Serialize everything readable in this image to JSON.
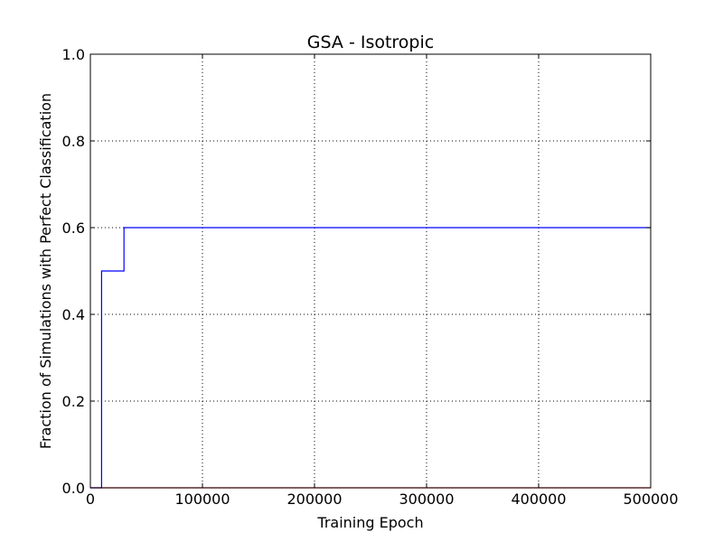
{
  "chart_data": {
    "type": "line",
    "title": "GSA - Isotropic",
    "xlabel": "Training Epoch",
    "ylabel": "Fraction of Simulations with Perfect Classification",
    "xlim": [
      0,
      500000
    ],
    "ylim": [
      0,
      1
    ],
    "x_ticks": [
      0,
      100000,
      200000,
      300000,
      400000,
      500000
    ],
    "y_ticks": [
      0,
      0.2,
      0.4,
      0.6,
      0.8,
      1
    ],
    "x_tick_labels": [
      "0",
      "100000",
      "200000",
      "300000",
      "400000",
      "500000"
    ],
    "y_tick_labels": [
      "0.0",
      "0.2",
      "0.4",
      "0.6",
      "0.8",
      "1.0"
    ],
    "grid": true,
    "step": "post",
    "series": [
      {
        "color": "#0000ff",
        "x": [
          0,
          10000,
          30000,
          500000
        ],
        "y": [
          0,
          0.5,
          0.6,
          0.6
        ]
      },
      {
        "color": "#ff0000",
        "x": [
          0,
          500000
        ],
        "y": [
          0,
          0
        ]
      }
    ]
  }
}
